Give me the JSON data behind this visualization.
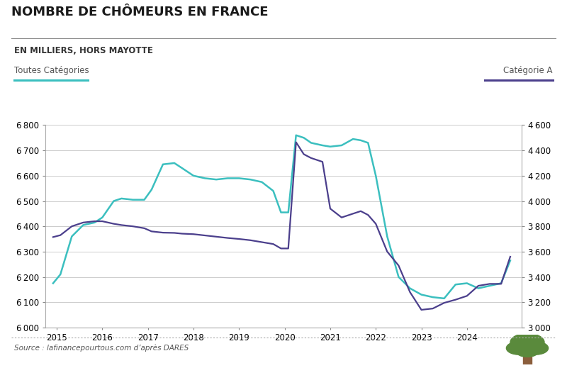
{
  "title": "NOMBRE DE CHÔMEURS EN FRANCE",
  "subtitle": "EN MILLIERS, HORS MAYOTTE",
  "label_left": "Toutes Catégories",
  "label_right": "Catégorie A",
  "source": "Source : lafinancepourtous.com d’après DARES",
  "color_cyan": "#3bbfbf",
  "color_purple": "#4b3f8c",
  "background_color": "#ffffff",
  "ylim_left": [
    6000,
    6800
  ],
  "ylim_right": [
    3000,
    4600
  ],
  "yticks_left": [
    6000,
    6100,
    6200,
    6300,
    6400,
    6500,
    6600,
    6700,
    6800
  ],
  "yticks_right": [
    3000,
    3200,
    3400,
    3600,
    3800,
    4000,
    4200,
    4400,
    4600
  ],
  "xticks": [
    2015,
    2016,
    2017,
    2018,
    2019,
    2020,
    2021,
    2022,
    2023,
    2024
  ],
  "xlim": [
    2014.75,
    2025.2
  ],
  "toutes_categories_x": [
    2014.92,
    2015.08,
    2015.33,
    2015.58,
    2015.83,
    2016.0,
    2016.25,
    2016.42,
    2016.67,
    2016.92,
    2017.08,
    2017.33,
    2017.58,
    2017.75,
    2018.0,
    2018.25,
    2018.5,
    2018.75,
    2019.0,
    2019.25,
    2019.5,
    2019.75,
    2019.92,
    2020.08,
    2020.25,
    2020.42,
    2020.58,
    2020.83,
    2021.0,
    2021.25,
    2021.5,
    2021.67,
    2021.83,
    2022.0,
    2022.25,
    2022.5,
    2022.75,
    2023.0,
    2023.25,
    2023.5,
    2023.75,
    2024.0,
    2024.25,
    2024.5,
    2024.75,
    2024.95
  ],
  "toutes_categories_y": [
    6175,
    6210,
    6360,
    6405,
    6415,
    6435,
    6500,
    6510,
    6505,
    6505,
    6545,
    6645,
    6650,
    6630,
    6600,
    6590,
    6585,
    6590,
    6590,
    6585,
    6575,
    6540,
    6455,
    6455,
    6760,
    6750,
    6730,
    6720,
    6715,
    6720,
    6745,
    6740,
    6730,
    6600,
    6360,
    6200,
    6155,
    6130,
    6120,
    6115,
    6170,
    6175,
    6155,
    6165,
    6175,
    6265
  ],
  "categorie_a_x": [
    2014.92,
    2015.08,
    2015.33,
    2015.58,
    2015.83,
    2016.0,
    2016.25,
    2016.42,
    2016.67,
    2016.92,
    2017.08,
    2017.33,
    2017.58,
    2017.75,
    2018.0,
    2018.25,
    2018.5,
    2018.75,
    2019.0,
    2019.25,
    2019.5,
    2019.75,
    2019.92,
    2020.08,
    2020.25,
    2020.42,
    2020.58,
    2020.83,
    2021.0,
    2021.25,
    2021.5,
    2021.67,
    2021.83,
    2022.0,
    2022.25,
    2022.5,
    2022.75,
    2023.0,
    2023.25,
    2023.5,
    2023.75,
    2024.0,
    2024.25,
    2024.5,
    2024.75,
    2024.95
  ],
  "categorie_a_y": [
    3715,
    3730,
    3800,
    3830,
    3840,
    3840,
    3820,
    3810,
    3800,
    3785,
    3760,
    3750,
    3748,
    3742,
    3738,
    3728,
    3718,
    3708,
    3700,
    3690,
    3675,
    3660,
    3625,
    3625,
    4465,
    4370,
    4340,
    4310,
    3940,
    3870,
    3900,
    3920,
    3890,
    3820,
    3600,
    3490,
    3280,
    3140,
    3150,
    3195,
    3220,
    3250,
    3330,
    3345,
    3345,
    3560
  ]
}
